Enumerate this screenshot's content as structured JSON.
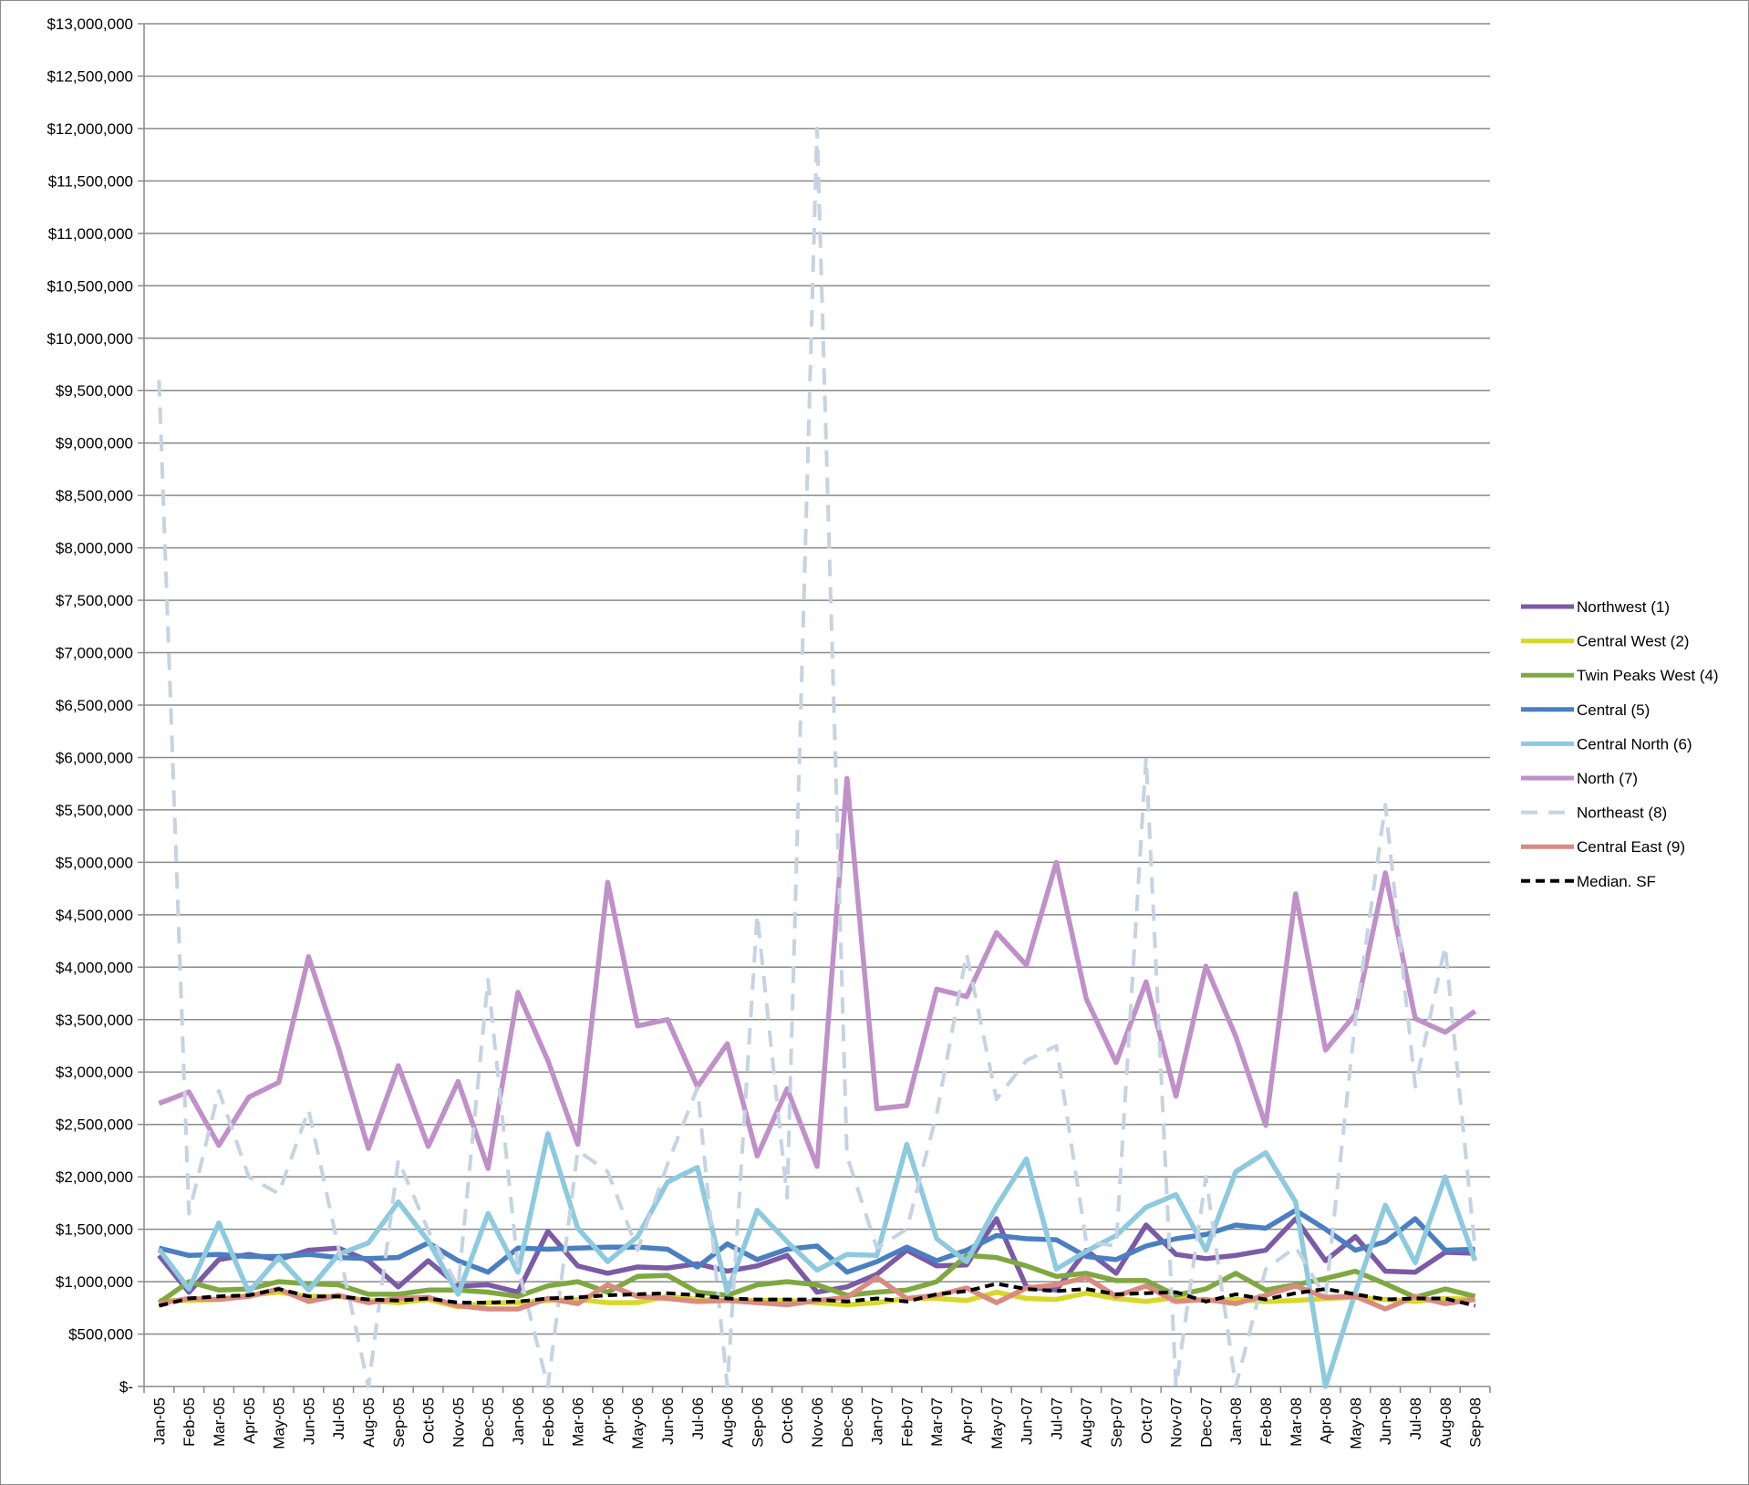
{
  "chart_data": {
    "type": "line",
    "title": "",
    "xlabel": "",
    "ylabel": "",
    "ylim": [
      0,
      13000000
    ],
    "ytick_step": 500000,
    "yticks": [
      "$-",
      "$500,000",
      "$1,000,000",
      "$1,500,000",
      "$2,000,000",
      "$2,500,000",
      "$3,000,000",
      "$3,500,000",
      "$4,000,000",
      "$4,500,000",
      "$5,000,000",
      "$5,500,000",
      "$6,000,000",
      "$6,500,000",
      "$7,000,000",
      "$7,500,000",
      "$8,000,000",
      "$8,500,000",
      "$9,000,000",
      "$9,500,000",
      "$10,000,000",
      "$10,500,000",
      "$11,000,000",
      "$11,500,000",
      "$12,000,000",
      "$12,500,000",
      "$13,000,000"
    ],
    "grid": true,
    "legend_position": "right",
    "categories": [
      "Jan-05",
      "Feb-05",
      "Mar-05",
      "Apr-05",
      "May-05",
      "Jun-05",
      "Jul-05",
      "Aug-05",
      "Sep-05",
      "Oct-05",
      "Nov-05",
      "Dec-05",
      "Jan-06",
      "Feb-06",
      "Mar-06",
      "Apr-06",
      "May-06",
      "Jun-06",
      "Jul-06",
      "Aug-06",
      "Sep-06",
      "Oct-06",
      "Nov-06",
      "Dec-06",
      "Jan-07",
      "Feb-07",
      "Mar-07",
      "Apr-07",
      "May-07",
      "Jun-07",
      "Jul-07",
      "Aug-07",
      "Sep-07",
      "Oct-07",
      "Nov-07",
      "Dec-07",
      "Jan-08",
      "Feb-08",
      "Mar-08",
      "Apr-08",
      "May-08",
      "Jun-08",
      "Jul-08",
      "Aug-08",
      "Sep-08"
    ],
    "series": [
      {
        "name": "Northwest (1)",
        "color": "#7b5aa6",
        "dashed": false,
        "values": [
          1250000,
          900000,
          1210000,
          1260000,
          1210000,
          1300000,
          1320000,
          1200000,
          950000,
          1200000,
          960000,
          970000,
          900000,
          1480000,
          1150000,
          1080000,
          1140000,
          1130000,
          1170000,
          1100000,
          1150000,
          1250000,
          900000,
          950000,
          1070000,
          1300000,
          1150000,
          1160000,
          1600000,
          950000,
          920000,
          1300000,
          1080000,
          1540000,
          1260000,
          1220000,
          1250000,
          1300000,
          1600000,
          1200000,
          1430000,
          1100000,
          1090000,
          1280000,
          1270000
        ]
      },
      {
        "name": "Central West (2)",
        "color": "#d8d82a",
        "dashed": false,
        "values": [
          820000,
          820000,
          830000,
          870000,
          900000,
          860000,
          860000,
          820000,
          800000,
          830000,
          760000,
          800000,
          800000,
          820000,
          830000,
          800000,
          800000,
          860000,
          830000,
          820000,
          820000,
          820000,
          800000,
          780000,
          800000,
          840000,
          840000,
          820000,
          900000,
          840000,
          830000,
          890000,
          840000,
          810000,
          850000,
          820000,
          830000,
          810000,
          820000,
          840000,
          850000,
          830000,
          810000,
          840000,
          830000
        ]
      },
      {
        "name": "Twin Peaks West (4)",
        "color": "#7fa840",
        "dashed": false,
        "values": [
          800000,
          1000000,
          920000,
          930000,
          1000000,
          980000,
          970000,
          880000,
          880000,
          920000,
          920000,
          900000,
          860000,
          960000,
          1000000,
          900000,
          1050000,
          1060000,
          900000,
          870000,
          970000,
          1000000,
          970000,
          870000,
          900000,
          920000,
          1000000,
          1250000,
          1230000,
          1150000,
          1050000,
          1080000,
          1010000,
          1010000,
          870000,
          930000,
          1080000,
          920000,
          970000,
          1030000,
          1100000,
          980000,
          850000,
          930000,
          860000
        ]
      },
      {
        "name": "Central (5)",
        "color": "#4a7fc1",
        "dashed": false,
        "values": [
          1320000,
          1250000,
          1260000,
          1240000,
          1240000,
          1260000,
          1230000,
          1220000,
          1230000,
          1370000,
          1200000,
          1090000,
          1320000,
          1310000,
          1320000,
          1330000,
          1330000,
          1310000,
          1140000,
          1360000,
          1210000,
          1310000,
          1340000,
          1090000,
          1190000,
          1330000,
          1200000,
          1300000,
          1440000,
          1410000,
          1400000,
          1240000,
          1210000,
          1340000,
          1410000,
          1450000,
          1540000,
          1510000,
          1680000,
          1500000,
          1300000,
          1380000,
          1600000,
          1300000,
          1310000
        ]
      },
      {
        "name": "Central North (6)",
        "color": "#8dcadf",
        "dashed": false,
        "values": [
          1310000,
          930000,
          1560000,
          900000,
          1230000,
          920000,
          1260000,
          1370000,
          1760000,
          1390000,
          880000,
          1650000,
          1090000,
          2410000,
          1510000,
          1190000,
          1430000,
          1950000,
          2090000,
          900000,
          1680000,
          1380000,
          1110000,
          1260000,
          1250000,
          2310000,
          1410000,
          1190000,
          1720000,
          2170000,
          1120000,
          1290000,
          1440000,
          1710000,
          1830000,
          1300000,
          2050000,
          2230000,
          1760000,
          0,
          900000,
          1730000,
          1180000,
          2000000,
          1200000
        ]
      },
      {
        "name": "North (7)",
        "color": "#c090c9",
        "dashed": false,
        "values": [
          2700000,
          2810000,
          2300000,
          2760000,
          2900000,
          4100000,
          3230000,
          2270000,
          3060000,
          2290000,
          2910000,
          2080000,
          3760000,
          3110000,
          2310000,
          4810000,
          3440000,
          3500000,
          2860000,
          3270000,
          2200000,
          2840000,
          2100000,
          5800000,
          2650000,
          2680000,
          3790000,
          3720000,
          4330000,
          4020000,
          5000000,
          3700000,
          3090000,
          3860000,
          2770000,
          4010000,
          3340000,
          2490000,
          4700000,
          3210000,
          3550000,
          4900000,
          3510000,
          3380000,
          3580000
        ]
      },
      {
        "name": "Northeast (8)",
        "color": "#c5d3e3",
        "dashed": true,
        "values": [
          9600000,
          1650000,
          2820000,
          2000000,
          1840000,
          2640000,
          1320000,
          0,
          2160000,
          1490000,
          950000,
          3880000,
          1140000,
          0,
          2250000,
          2050000,
          1300000,
          2120000,
          2850000,
          0,
          4500000,
          1800000,
          12000000,
          2200000,
          1320000,
          1500000,
          2600000,
          4130000,
          2740000,
          3110000,
          3250000,
          1380000,
          1340000,
          6000000,
          0,
          2000000,
          0,
          1120000,
          1330000,
          850000,
          3500000,
          5550000,
          2860000,
          4200000,
          1310000
        ]
      },
      {
        "name": "Central East (9)",
        "color": "#d98b80",
        "dashed": false,
        "values": [
          790000,
          840000,
          830000,
          860000,
          930000,
          810000,
          870000,
          800000,
          840000,
          850000,
          770000,
          740000,
          740000,
          840000,
          790000,
          970000,
          860000,
          840000,
          810000,
          820000,
          800000,
          780000,
          820000,
          850000,
          1040000,
          840000,
          870000,
          940000,
          800000,
          940000,
          970000,
          1040000,
          860000,
          960000,
          810000,
          830000,
          790000,
          870000,
          960000,
          850000,
          860000,
          740000,
          860000,
          790000,
          830000
        ]
      },
      {
        "name": "Median. SF",
        "color": "#000000",
        "dashed": true,
        "values": [
          770000,
          840000,
          860000,
          870000,
          930000,
          860000,
          860000,
          830000,
          820000,
          840000,
          800000,
          800000,
          810000,
          840000,
          850000,
          870000,
          880000,
          890000,
          870000,
          840000,
          830000,
          830000,
          830000,
          810000,
          840000,
          810000,
          880000,
          910000,
          980000,
          930000,
          910000,
          930000,
          880000,
          890000,
          900000,
          810000,
          880000,
          830000,
          890000,
          930000,
          880000,
          830000,
          840000,
          840000,
          770000
        ]
      }
    ]
  }
}
